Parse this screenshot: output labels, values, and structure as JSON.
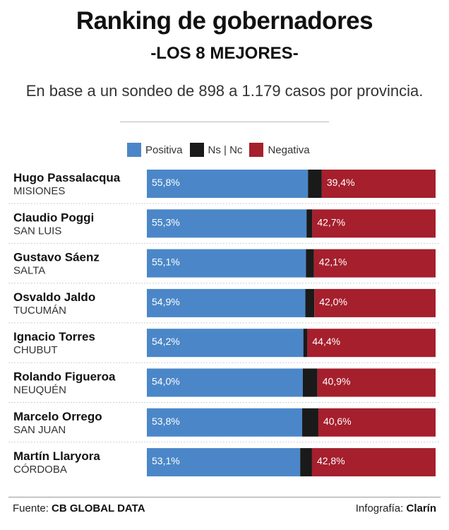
{
  "header": {
    "title": "Ranking de gobernadores",
    "subtitle": "-LOS 8 MEJORES-",
    "description": "En base a un sondeo de 898 a 1.179 casos por provincia."
  },
  "legend": [
    {
      "label": "Positiva",
      "color": "#4b87c8"
    },
    {
      "label": "Ns | Nc",
      "color": "#1a1a1a"
    },
    {
      "label": "Negativa",
      "color": "#a51f2d"
    }
  ],
  "chart_data": {
    "type": "bar",
    "orientation": "horizontal",
    "stacked": true,
    "title": "Ranking de gobernadores",
    "subtitle": "-LOS 8 MEJORES-",
    "categories": [
      {
        "name": "Hugo Passalacqua",
        "province": "MISIONES"
      },
      {
        "name": "Claudio Poggi",
        "province": "SAN LUIS"
      },
      {
        "name": "Gustavo Sáenz",
        "province": "SALTA"
      },
      {
        "name": "Osvaldo Jaldo",
        "province": "TUCUMÁN"
      },
      {
        "name": "Ignacio Torres",
        "province": "CHUBUT"
      },
      {
        "name": "Rolando Figueroa",
        "province": "NEUQUÉN"
      },
      {
        "name": "Marcelo Orrego",
        "province": "SAN JUAN"
      },
      {
        "name": "Martín Llaryora",
        "province": "CÓRDOBA"
      }
    ],
    "series": [
      {
        "name": "Positiva",
        "color": "#4b87c8",
        "values": [
          55.8,
          55.3,
          55.1,
          54.9,
          54.2,
          54.0,
          53.8,
          53.1
        ],
        "labels": [
          "55,8%",
          "55,3%",
          "55,1%",
          "54,9%",
          "54,2%",
          "54,0%",
          "53,8%",
          "53,1%"
        ]
      },
      {
        "name": "Ns | Nc",
        "color": "#1a1a1a",
        "values": [
          4.8,
          2.0,
          2.8,
          3.1,
          1.4,
          5.1,
          5.6,
          4.1
        ]
      },
      {
        "name": "Negativa",
        "color": "#a51f2d",
        "values": [
          39.4,
          42.7,
          42.1,
          42.0,
          44.4,
          40.9,
          40.6,
          42.8
        ],
        "labels": [
          "39,4%",
          "42,7%",
          "42,1%",
          "42,0%",
          "44,4%",
          "40,9%",
          "40,6%",
          "42,8%"
        ]
      }
    ],
    "xlim": [
      0,
      100
    ],
    "legend_position": "top",
    "grid": false
  },
  "footer": {
    "source_label": "Fuente:",
    "source_value": "CB GLOBAL DATA",
    "credit_label": "Infografía:",
    "credit_value": "Clarín"
  }
}
